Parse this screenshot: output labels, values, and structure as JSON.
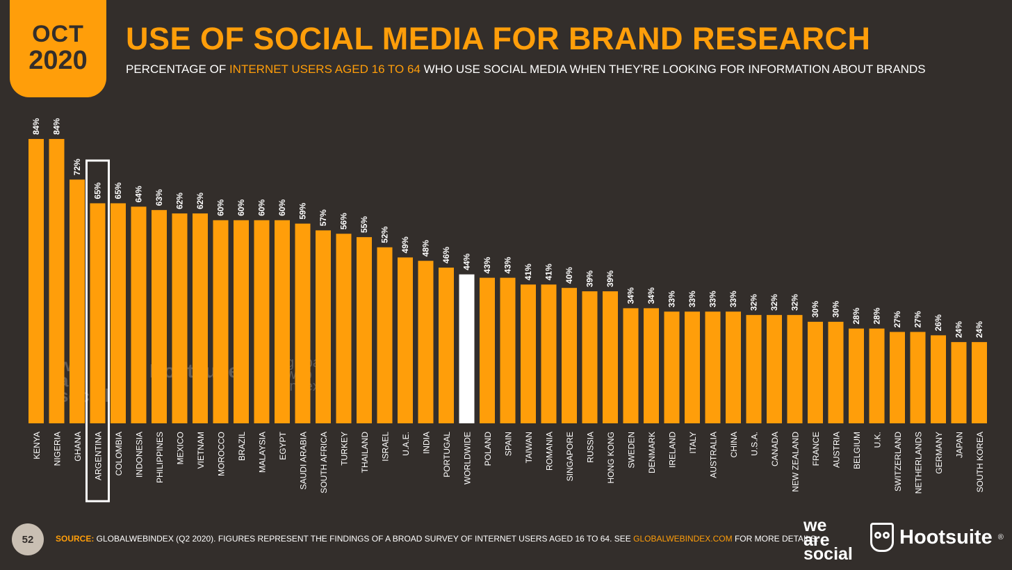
{
  "header": {
    "date_month": "OCT",
    "date_year": "2020",
    "title": "USE OF SOCIAL MEDIA FOR BRAND RESEARCH",
    "subtitle_pre": "PERCENTAGE OF ",
    "subtitle_highlight": "INTERNET USERS AGED 16 TO 64",
    "subtitle_post": " WHO USE SOCIAL MEDIA WHEN THEY’RE LOOKING FOR INFORMATION ABOUT BRANDS"
  },
  "chart_data": {
    "type": "bar",
    "title": "USE OF SOCIAL MEDIA FOR BRAND RESEARCH",
    "ylim": [
      0,
      100
    ],
    "grid": false,
    "value_suffix": "%",
    "categories": [
      "KENYA",
      "NIGERIA",
      "GHANA",
      "ARGENTINA",
      "COLOMBIA",
      "INDONESIA",
      "PHILIPPINES",
      "MEXICO",
      "VIETNAM",
      "MOROCCO",
      "BRAZIL",
      "MALAYSIA",
      "EGYPT",
      "SAUDI ARABIA",
      "SOUTH AFRICA",
      "TURKEY",
      "THAILAND",
      "ISRAEL",
      "U.A.E.",
      "INDIA",
      "PORTUGAL",
      "WORLDWIDE",
      "POLAND",
      "SPAIN",
      "TAIWAN",
      "ROMANIA",
      "SINGAPORE",
      "RUSSIA",
      "HONG KONG",
      "SWEDEN",
      "DENMARK",
      "IRELAND",
      "ITALY",
      "AUSTRALIA",
      "CHINA",
      "U.S.A.",
      "CANADA",
      "NEW ZEALAND",
      "FRANCE",
      "AUSTRIA",
      "BELGIUM",
      "U.K.",
      "SWITZERLAND",
      "NETHERLANDS",
      "GERMANY",
      "JAPAN",
      "SOUTH KOREA"
    ],
    "values": [
      84,
      84,
      72,
      65,
      65,
      64,
      63,
      62,
      62,
      60,
      60,
      60,
      60,
      59,
      57,
      56,
      55,
      52,
      49,
      48,
      46,
      44,
      43,
      43,
      41,
      41,
      40,
      39,
      39,
      34,
      34,
      33,
      33,
      33,
      33,
      32,
      32,
      32,
      30,
      30,
      28,
      28,
      27,
      27,
      26,
      24,
      24
    ],
    "highlight_category": "WORLDWIDE",
    "outlined_category": "ARGENTINA",
    "colors": {
      "bar": "#ff9e0a",
      "highlight_bar": "#ffffff",
      "outline": "#ffffff",
      "background": "#332e2b"
    }
  },
  "watermarks": {
    "we_are_social": [
      "we",
      "are",
      "social"
    ],
    "hootsuite": "Hootsuite",
    "gwi": [
      "global",
      "web",
      "index"
    ]
  },
  "footer": {
    "page_number": "52",
    "source_label": "SOURCE:",
    "source_text": " GLOBALWEBINDEX (Q2 2020). FIGURES REPRESENT THE FINDINGS OF A BROAD SURVEY OF INTERNET USERS AGED 16 TO 64. SEE ",
    "source_link": "GLOBALWEBINDEX.COM",
    "source_tail": " FOR MORE DETAILS."
  },
  "logos": {
    "we_are_social": [
      "we",
      "are",
      "social"
    ],
    "hootsuite": "Hootsuite",
    "hootsuite_mark": "®"
  }
}
